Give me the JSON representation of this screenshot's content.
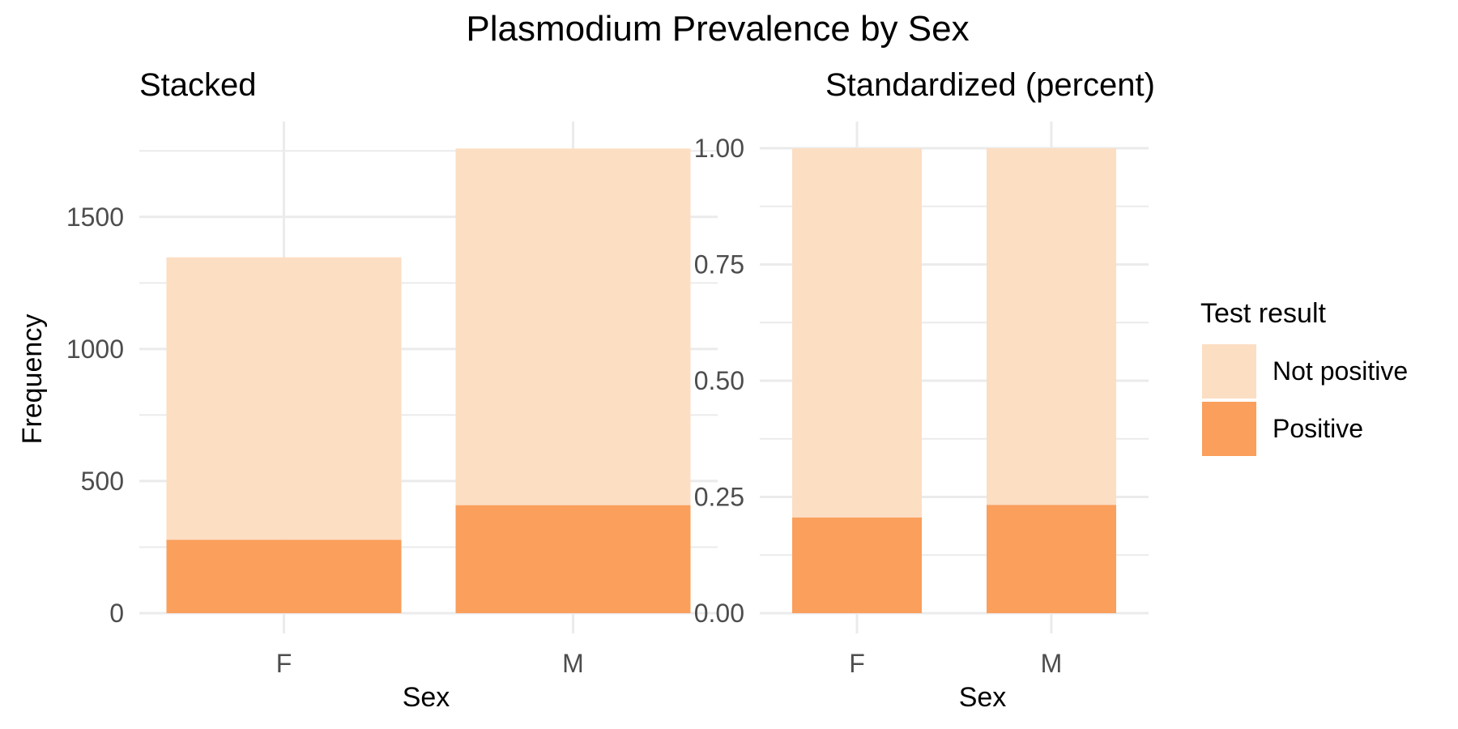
{
  "title": "Plasmodium Prevalence by Sex",
  "colors": {
    "not_positive": "#fcdec3",
    "positive": "#fa9f5c"
  },
  "legend": {
    "title": "Test result",
    "items": [
      {
        "label": "Not positive",
        "color": "#fcdec3"
      },
      {
        "label": "Positive",
        "color": "#fa9f5c"
      }
    ]
  },
  "chart_data": [
    {
      "type": "bar",
      "stacked": true,
      "subtitle": "Stacked",
      "xlabel": "Sex",
      "ylabel": "Frequency",
      "categories": [
        "F",
        "M"
      ],
      "series": [
        {
          "name": "Positive",
          "values": [
            278,
            409
          ]
        },
        {
          "name": "Not positive",
          "values": [
            1069,
            1350
          ]
        }
      ],
      "ylim": [
        0,
        1760
      ],
      "yticks": [
        0,
        500,
        1000,
        1500
      ],
      "yticks_minor": [
        250,
        750,
        1250,
        1750
      ],
      "grid": true
    },
    {
      "type": "bar",
      "stacked": true,
      "normalized": true,
      "subtitle": "Standardized (percent)",
      "xlabel": "Sex",
      "ylabel": "",
      "categories": [
        "F",
        "M"
      ],
      "series": [
        {
          "name": "Positive",
          "values": [
            0.206,
            0.233
          ]
        },
        {
          "name": "Not positive",
          "values": [
            0.794,
            0.767
          ]
        }
      ],
      "ylim": [
        0,
        1
      ],
      "yticks": [
        0,
        0.25,
        0.5,
        0.75,
        1.0
      ],
      "ytick_labels": [
        "0.00",
        "0.25",
        "0.50",
        "0.75",
        "1.00"
      ],
      "yticks_minor": [
        0.125,
        0.375,
        0.625,
        0.875
      ],
      "grid": true
    }
  ]
}
